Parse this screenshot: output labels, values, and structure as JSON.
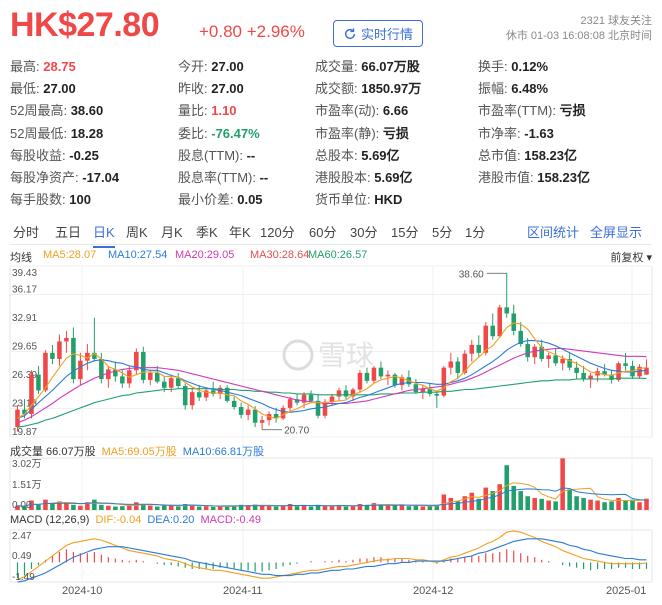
{
  "header": {
    "price": "HK$27.80",
    "change": "+0.80 +2.96%",
    "realtime_button": "实时行情",
    "followers": "2321 球友关注",
    "status": "休市 01-03 16:08:08 北京时间"
  },
  "stats": [
    [
      {
        "k": "最高:",
        "v": "28.75",
        "c": "red"
      },
      {
        "k": "今开:",
        "v": "27.00",
        "c": ""
      },
      {
        "k": "成交量:",
        "v": "66.07万股",
        "c": ""
      },
      {
        "k": "换手:",
        "v": "0.12%",
        "c": ""
      }
    ],
    [
      {
        "k": "最低:",
        "v": "27.00",
        "c": ""
      },
      {
        "k": "昨收:",
        "v": "27.00",
        "c": ""
      },
      {
        "k": "成交额:",
        "v": "1850.97万",
        "c": ""
      },
      {
        "k": "振幅:",
        "v": "6.48%",
        "c": ""
      }
    ],
    [
      {
        "k": "52周最高:",
        "v": "38.60",
        "c": ""
      },
      {
        "k": "量比:",
        "v": "1.10",
        "c": "red"
      },
      {
        "k": "市盈率(动):",
        "v": "6.66",
        "c": ""
      },
      {
        "k": "市盈率(TTM):",
        "v": "亏损",
        "c": ""
      }
    ],
    [
      {
        "k": "52周最低:",
        "v": "18.28",
        "c": ""
      },
      {
        "k": "委比:",
        "v": "-76.47%",
        "c": "green"
      },
      {
        "k": "市盈率(静):",
        "v": "亏损",
        "c": ""
      },
      {
        "k": "市净率:",
        "v": "-1.63",
        "c": ""
      }
    ],
    [
      {
        "k": "每股收益:",
        "v": "-0.25",
        "c": ""
      },
      {
        "k": "股息(TTM):",
        "v": "--",
        "c": ""
      },
      {
        "k": "总股本:",
        "v": "5.69亿",
        "c": ""
      },
      {
        "k": "总市值:",
        "v": "158.23亿",
        "c": ""
      }
    ],
    [
      {
        "k": "每股净资产:",
        "v": "-17.04",
        "c": ""
      },
      {
        "k": "股息率(TTM):",
        "v": "--",
        "c": ""
      },
      {
        "k": "港股股本:",
        "v": "5.69亿",
        "c": ""
      },
      {
        "k": "港股市值:",
        "v": "158.23亿",
        "c": ""
      }
    ],
    [
      {
        "k": "每手股数:",
        "v": "100",
        "c": ""
      },
      {
        "k": "最小价差:",
        "v": "0.05",
        "c": ""
      },
      {
        "k": "货币单位:",
        "v": "HKD",
        "c": ""
      }
    ]
  ],
  "tabs": [
    "分时",
    "五日",
    "日K",
    "周K",
    "月K",
    "季K",
    "年K",
    "120分",
    "60分",
    "30分",
    "15分",
    "5分",
    "1分"
  ],
  "active_tab": 2,
  "tab_right": [
    "区间统计",
    "全屏显示"
  ],
  "ma_legend": {
    "line_type": "均线",
    "items": [
      {
        "label": "MA5:28.07",
        "color": "#f0a020"
      },
      {
        "label": "MA10:27.54",
        "color": "#2a7bd8"
      },
      {
        "label": "MA20:29.05",
        "color": "#d03ab8"
      },
      {
        "label": "MA30:28.64",
        "color": "#e05050"
      },
      {
        "label": "MA60:26.57",
        "color": "#22a06b"
      }
    ],
    "adjust": "前复权"
  },
  "vol_legend": {
    "items": [
      {
        "label": "成交量 66.07万股",
        "color": "#333333"
      },
      {
        "label": "MA5:69.05万股",
        "color": "#f0a020"
      },
      {
        "label": "MA10:66.81万股",
        "color": "#2a7bd8"
      }
    ]
  },
  "macd_legend": {
    "items": [
      {
        "label": "MACD (12,26,9)",
        "color": "#333333"
      },
      {
        "label": "DIF:-0.04",
        "color": "#f0a020"
      },
      {
        "label": "DEA:0.20",
        "color": "#2a7bd8"
      },
      {
        "label": "MACD:-0.49",
        "color": "#d03ab8"
      }
    ]
  },
  "price_axis": [
    "39.43",
    "36.17",
    "32.91",
    "29.65",
    "26.39",
    "23.13",
    "19.87"
  ],
  "vol_axis": [
    "3.02万",
    "1.51万",
    "0.00"
  ],
  "macd_axis": [
    "2.47",
    "0.49",
    "-1.49"
  ],
  "dates": [
    "2024-10",
    "2024-11",
    "2024-12",
    "2025-01"
  ],
  "watermark": "雪球",
  "colors": {
    "up": "#f04848",
    "down": "#22a06b",
    "accent": "#3c6fd6"
  },
  "chart_data": {
    "type": "candlestick",
    "ylim": [
      19.87,
      39.43
    ],
    "annotations": [
      {
        "label": "38.60",
        "value": 38.6
      },
      {
        "label": "20.70",
        "value": 20.7
      }
    ],
    "candles": [
      [
        21.0,
        23.5,
        20.5,
        23.0
      ],
      [
        23.0,
        24.2,
        22.0,
        22.5
      ],
      [
        22.5,
        27.5,
        22.0,
        27.0
      ],
      [
        27.0,
        28.0,
        24.8,
        25.2
      ],
      [
        25.2,
        29.8,
        25.0,
        29.5
      ],
      [
        29.5,
        30.4,
        28.2,
        28.8
      ],
      [
        28.8,
        31.6,
        28.0,
        30.8
      ],
      [
        30.8,
        32.0,
        29.5,
        31.2
      ],
      [
        31.2,
        32.4,
        26.0,
        26.5
      ],
      [
        26.5,
        29.5,
        25.8,
        28.6
      ],
      [
        28.6,
        30.5,
        27.5,
        29.5
      ],
      [
        29.5,
        33.5,
        28.5,
        28.8
      ],
      [
        28.8,
        29.5,
        26.0,
        26.5
      ],
      [
        26.5,
        28.0,
        25.5,
        27.6
      ],
      [
        27.6,
        28.5,
        26.2,
        26.8
      ],
      [
        26.8,
        27.5,
        25.5,
        26.0
      ],
      [
        26.0,
        28.0,
        25.5,
        27.5
      ],
      [
        27.5,
        30.0,
        27.0,
        29.6
      ],
      [
        29.6,
        30.2,
        26.0,
        26.4
      ],
      [
        26.4,
        27.5,
        25.8,
        27.2
      ],
      [
        27.2,
        28.0,
        26.0,
        26.2
      ],
      [
        26.2,
        26.8,
        25.0,
        25.5
      ],
      [
        25.5,
        27.0,
        25.0,
        26.6
      ],
      [
        26.6,
        27.2,
        25.5,
        25.7
      ],
      [
        25.7,
        26.0,
        23.0,
        23.5
      ],
      [
        23.5,
        25.5,
        23.0,
        25.0
      ],
      [
        25.0,
        25.8,
        24.0,
        24.4
      ],
      [
        24.4,
        25.5,
        24.0,
        25.2
      ],
      [
        25.2,
        26.2,
        24.5,
        24.8
      ],
      [
        24.8,
        25.8,
        24.2,
        25.5
      ],
      [
        25.5,
        25.8,
        23.8,
        24.0
      ],
      [
        24.0,
        24.5,
        23.0,
        23.3
      ],
      [
        23.3,
        23.8,
        22.0,
        22.4
      ],
      [
        22.4,
        23.5,
        21.8,
        23.0
      ],
      [
        23.0,
        23.4,
        21.0,
        21.5
      ],
      [
        21.5,
        22.3,
        20.7,
        21.8
      ],
      [
        21.8,
        22.8,
        21.2,
        22.5
      ],
      [
        22.5,
        23.2,
        21.5,
        22.0
      ],
      [
        22.0,
        23.5,
        21.8,
        23.2
      ],
      [
        23.2,
        24.5,
        22.8,
        24.2
      ],
      [
        24.2,
        24.8,
        23.5,
        23.8
      ],
      [
        23.8,
        25.0,
        23.2,
        24.7
      ],
      [
        24.7,
        25.2,
        23.8,
        24.0
      ],
      [
        24.0,
        24.8,
        22.0,
        22.3
      ],
      [
        22.3,
        24.2,
        22.0,
        23.9
      ],
      [
        23.9,
        24.8,
        23.5,
        24.5
      ],
      [
        24.5,
        25.5,
        24.0,
        25.2
      ],
      [
        25.2,
        25.8,
        24.2,
        24.5
      ],
      [
        24.5,
        25.5,
        24.0,
        25.3
      ],
      [
        25.3,
        27.5,
        25.0,
        27.2
      ],
      [
        27.2,
        27.8,
        26.0,
        26.3
      ],
      [
        26.3,
        28.0,
        26.0,
        27.8
      ],
      [
        27.8,
        28.5,
        26.5,
        26.8
      ],
      [
        26.8,
        27.5,
        25.8,
        27.0
      ],
      [
        27.0,
        27.2,
        25.5,
        25.8
      ],
      [
        25.8,
        27.0,
        25.2,
        26.7
      ],
      [
        26.7,
        27.5,
        25.6,
        25.9
      ],
      [
        25.9,
        26.5,
        24.8,
        25.0
      ],
      [
        25.0,
        25.8,
        24.2,
        25.4
      ],
      [
        25.4,
        26.0,
        24.5,
        24.8
      ],
      [
        24.8,
        25.2,
        23.2,
        24.6
      ],
      [
        24.6,
        28.0,
        24.4,
        27.8
      ],
      [
        27.8,
        29.5,
        27.0,
        28.5
      ],
      [
        28.5,
        29.0,
        26.5,
        27.2
      ],
      [
        27.2,
        29.8,
        27.0,
        29.4
      ],
      [
        29.4,
        31.0,
        28.5,
        30.4
      ],
      [
        30.4,
        31.5,
        29.0,
        29.5
      ],
      [
        29.5,
        33.0,
        29.2,
        32.6
      ],
      [
        32.6,
        34.0,
        31.0,
        31.4
      ],
      [
        31.4,
        35.0,
        31.2,
        34.7
      ],
      [
        34.7,
        38.6,
        33.5,
        34.0
      ],
      [
        34.0,
        35.0,
        31.5,
        32.0
      ],
      [
        32.0,
        33.0,
        30.2,
        30.5
      ],
      [
        30.5,
        31.2,
        28.5,
        29.0
      ],
      [
        29.0,
        30.5,
        28.2,
        30.2
      ],
      [
        30.2,
        31.0,
        28.5,
        28.8
      ],
      [
        28.8,
        29.5,
        27.8,
        29.2
      ],
      [
        29.2,
        30.0,
        28.0,
        28.3
      ],
      [
        28.3,
        29.2,
        27.5,
        28.8
      ],
      [
        28.8,
        29.5,
        27.5,
        27.8
      ],
      [
        27.8,
        28.5,
        26.5,
        27.2
      ],
      [
        27.2,
        28.0,
        26.2,
        26.5
      ],
      [
        26.5,
        27.2,
        25.5,
        26.9
      ],
      [
        26.9,
        27.8,
        26.2,
        27.4
      ],
      [
        27.4,
        28.2,
        26.8,
        27.0
      ],
      [
        27.0,
        27.5,
        26.0,
        26.4
      ],
      [
        26.4,
        28.5,
        26.2,
        28.3
      ],
      [
        28.3,
        29.5,
        27.5,
        28.0
      ],
      [
        28.0,
        28.6,
        26.5,
        26.8
      ],
      [
        26.8,
        28.2,
        26.5,
        27.9
      ],
      [
        27.0,
        28.75,
        27.0,
        27.8
      ]
    ],
    "ma5": [
      22.0,
      22.5,
      23.5,
      24.5,
      25.5,
      26.7,
      27.8,
      28.9,
      29.4,
      29.2,
      28.9,
      29.4,
      28.8,
      27.9,
      27.6,
      27.2,
      26.7,
      27.0,
      27.3,
      27.3,
      27.3,
      26.8,
      26.8,
      26.7,
      26.1,
      25.6,
      25.2,
      25.0,
      24.9,
      24.9,
      24.7,
      24.6,
      24.0,
      23.6,
      23.1,
      22.5,
      22.2,
      22.0,
      22.4,
      22.8,
      23.1,
      23.5,
      23.8,
      23.8,
      23.8,
      23.9,
      24.0,
      24.1,
      24.7,
      25.0,
      25.4,
      26.0,
      26.4,
      26.6,
      26.8,
      26.6,
      26.3,
      26.0,
      25.8,
      25.4,
      25.1,
      25.5,
      26.2,
      26.6,
      27.4,
      28.3,
      29.0,
      29.8,
      30.3,
      31.3,
      32.4,
      32.9,
      32.8,
      32.2,
      31.1,
      30.1,
      29.6,
      29.3,
      28.9,
      28.6,
      28.3,
      27.8,
      27.3,
      27.2,
      27.0,
      26.9,
      27.2,
      27.4,
      27.4,
      27.7,
      27.8
    ],
    "ma10": [
      22.0,
      22.3,
      23.0,
      23.8,
      24.5,
      25.2,
      26.0,
      26.8,
      27.4,
      27.9,
      28.3,
      28.6,
      28.7,
      28.6,
      28.4,
      28.3,
      28.0,
      27.9,
      27.6,
      27.5,
      27.5,
      27.2,
      26.9,
      26.7,
      26.3,
      26.0,
      25.7,
      25.5,
      25.3,
      25.2,
      25.0,
      24.8,
      24.6,
      24.3,
      24.0,
      23.7,
      23.3,
      23.0,
      22.8,
      22.7,
      22.8,
      22.9,
      23.1,
      23.2,
      23.3,
      23.5,
      23.7,
      23.8,
      24.1,
      24.4,
      24.6,
      24.9,
      25.2,
      25.5,
      25.8,
      26.0,
      26.1,
      26.1,
      26.1,
      26.0,
      25.9,
      25.9,
      26.1,
      26.3,
      26.6,
      27.0,
      27.5,
      28.0,
      28.5,
      29.1,
      29.8,
      30.3,
      30.7,
      30.9,
      30.9,
      30.8,
      30.6,
      30.3,
      29.9,
      29.5,
      29.1,
      28.7,
      28.3,
      28.0,
      27.7,
      27.5,
      27.4,
      27.3,
      27.3,
      27.4,
      27.5
    ],
    "ma20": [
      21.5,
      21.8,
      22.2,
      22.7,
      23.2,
      23.7,
      24.3,
      24.8,
      25.3,
      25.8,
      26.2,
      26.6,
      26.9,
      27.2,
      27.4,
      27.6,
      27.7,
      27.8,
      27.8,
      27.8,
      27.8,
      27.7,
      27.6,
      27.5,
      27.3,
      27.1,
      26.9,
      26.7,
      26.5,
      26.3,
      26.1,
      25.9,
      25.7,
      25.5,
      25.3,
      25.1,
      24.9,
      24.7,
      24.5,
      24.3,
      24.1,
      24.0,
      23.9,
      23.8,
      23.7,
      23.7,
      23.7,
      23.7,
      23.8,
      23.9,
      24.0,
      24.2,
      24.4,
      24.6,
      24.8,
      25.0,
      25.2,
      25.3,
      25.4,
      25.5,
      25.6,
      25.7,
      25.9,
      26.1,
      26.3,
      26.6,
      26.9,
      27.3,
      27.7,
      28.1,
      28.5,
      28.9,
      29.2,
      29.5,
      29.7,
      29.8,
      29.9,
      30.0,
      30.0,
      29.9,
      29.8,
      29.7,
      29.6,
      29.5,
      29.4,
      29.3,
      29.2,
      29.1,
      29.1,
      29.1,
      29.05
    ],
    "ma60": [
      21.0,
      21.1,
      21.3,
      21.5,
      21.8,
      22.0,
      22.3,
      22.6,
      22.9,
      23.2,
      23.5,
      23.8,
      24.0,
      24.2,
      24.4,
      24.6,
      24.7,
      24.9,
      25.0,
      25.1,
      25.2,
      25.3,
      25.3,
      25.4,
      25.4,
      25.4,
      25.4,
      25.4,
      25.4,
      25.3,
      25.3,
      25.3,
      25.2,
      25.2,
      25.1,
      25.1,
      25.0,
      25.0,
      24.9,
      24.9,
      24.8,
      24.8,
      24.8,
      24.7,
      24.7,
      24.7,
      24.7,
      24.7,
      24.7,
      24.7,
      24.7,
      24.7,
      24.8,
      24.8,
      24.8,
      24.9,
      24.9,
      24.9,
      25.0,
      25.0,
      25.0,
      25.1,
      25.1,
      25.2,
      25.3,
      25.3,
      25.4,
      25.5,
      25.6,
      25.7,
      25.8,
      25.9,
      26.0,
      26.1,
      26.2,
      26.3,
      26.3,
      26.4,
      26.4,
      26.4,
      26.5,
      26.5,
      26.5,
      26.5,
      26.5,
      26.5,
      26.6,
      26.6,
      26.6,
      26.6,
      26.57
    ],
    "volumes": [
      0.25,
      0.2,
      0.55,
      0.3,
      0.6,
      0.35,
      0.5,
      0.4,
      0.3,
      0.25,
      0.45,
      0.6,
      0.3,
      0.25,
      0.2,
      0.22,
      0.3,
      0.45,
      0.35,
      0.25,
      0.2,
      0.25,
      0.3,
      0.2,
      0.35,
      0.25,
      0.2,
      0.22,
      0.18,
      0.2,
      0.22,
      0.25,
      0.3,
      0.28,
      0.32,
      0.25,
      0.22,
      0.2,
      0.25,
      0.35,
      0.22,
      0.28,
      0.2,
      0.3,
      0.25,
      0.22,
      0.28,
      0.2,
      0.22,
      0.35,
      0.3,
      0.4,
      0.3,
      0.25,
      0.28,
      0.3,
      0.22,
      0.25,
      0.2,
      0.22,
      0.3,
      0.9,
      0.7,
      0.5,
      0.8,
      1.0,
      0.65,
      1.3,
      1.1,
      1.5,
      2.6,
      1.4,
      1.1,
      0.8,
      0.7,
      0.65,
      0.55,
      0.5,
      3.0,
      1.2,
      0.8,
      0.7,
      0.6,
      0.55,
      0.45,
      0.5,
      0.7,
      0.55,
      0.6,
      0.45,
      0.66
    ],
    "macd": [
      -1.2,
      -1.0,
      -0.5,
      -0.2,
      0.2,
      0.5,
      0.8,
      1.0,
      0.8,
      0.7,
      0.7,
      0.8,
      0.6,
      0.4,
      0.3,
      0.2,
      0.1,
      0.2,
      0.1,
      0.0,
      -0.1,
      -0.2,
      -0.2,
      -0.3,
      -0.4,
      -0.5,
      -0.5,
      -0.5,
      -0.5,
      -0.4,
      -0.4,
      -0.5,
      -0.6,
      -0.6,
      -0.7,
      -0.7,
      -0.6,
      -0.5,
      -0.3,
      -0.2,
      -0.1,
      0.0,
      0.1,
      0.0,
      0.1,
      0.1,
      0.2,
      0.1,
      0.2,
      0.3,
      0.3,
      0.4,
      0.4,
      0.3,
      0.3,
      0.3,
      0.2,
      0.1,
      0.1,
      0.0,
      -0.1,
      0.1,
      0.3,
      0.3,
      0.4,
      0.5,
      0.5,
      0.7,
      0.7,
      0.8,
      1.0,
      0.9,
      0.7,
      0.5,
      0.4,
      0.2,
      0.1,
      0.0,
      -0.2,
      -0.3,
      -0.4,
      -0.5,
      -0.6,
      -0.5,
      -0.5,
      -0.5,
      -0.4,
      -0.4,
      -0.5,
      -0.5,
      -0.49
    ],
    "dif": [
      -1.3,
      -1.1,
      -0.7,
      -0.3,
      0.1,
      0.5,
      0.9,
      1.3,
      1.5,
      1.6,
      1.7,
      1.8,
      1.7,
      1.5,
      1.3,
      1.1,
      0.9,
      0.8,
      0.7,
      0.6,
      0.5,
      0.3,
      0.2,
      0.1,
      -0.1,
      -0.3,
      -0.4,
      -0.5,
      -0.6,
      -0.6,
      -0.7,
      -0.8,
      -0.9,
      -1.0,
      -1.1,
      -1.2,
      -1.2,
      -1.1,
      -1.0,
      -0.9,
      -0.8,
      -0.7,
      -0.6,
      -0.6,
      -0.5,
      -0.4,
      -0.3,
      -0.3,
      -0.2,
      -0.1,
      0.0,
      0.1,
      0.2,
      0.2,
      0.3,
      0.3,
      0.3,
      0.2,
      0.2,
      0.1,
      0.0,
      0.2,
      0.4,
      0.5,
      0.7,
      0.9,
      1.1,
      1.4,
      1.6,
      1.9,
      2.3,
      2.4,
      2.3,
      2.1,
      1.9,
      1.6,
      1.4,
      1.2,
      0.9,
      0.7,
      0.5,
      0.3,
      0.2,
      0.1,
      0.0,
      -0.1,
      -0.1,
      -0.1,
      -0.1,
      -0.1,
      -0.04
    ],
    "dea": [
      -1.5,
      -1.4,
      -1.2,
      -1.0,
      -0.8,
      -0.5,
      -0.2,
      0.1,
      0.4,
      0.6,
      0.8,
      1.0,
      1.1,
      1.2,
      1.2,
      1.2,
      1.1,
      1.0,
      0.9,
      0.8,
      0.7,
      0.6,
      0.5,
      0.4,
      0.3,
      0.1,
      0.0,
      -0.1,
      -0.2,
      -0.3,
      -0.4,
      -0.5,
      -0.6,
      -0.7,
      -0.8,
      -0.9,
      -0.9,
      -1.0,
      -1.0,
      -1.0,
      -0.9,
      -0.9,
      -0.8,
      -0.8,
      -0.7,
      -0.6,
      -0.6,
      -0.5,
      -0.5,
      -0.4,
      -0.3,
      -0.3,
      -0.2,
      -0.1,
      -0.1,
      0.0,
      0.0,
      0.1,
      0.1,
      0.1,
      0.1,
      0.1,
      0.2,
      0.3,
      0.4,
      0.5,
      0.7,
      0.8,
      1.0,
      1.2,
      1.4,
      1.6,
      1.7,
      1.8,
      1.8,
      1.8,
      1.7,
      1.6,
      1.5,
      1.3,
      1.2,
      1.0,
      0.9,
      0.7,
      0.6,
      0.5,
      0.4,
      0.3,
      0.3,
      0.2,
      0.2
    ]
  }
}
